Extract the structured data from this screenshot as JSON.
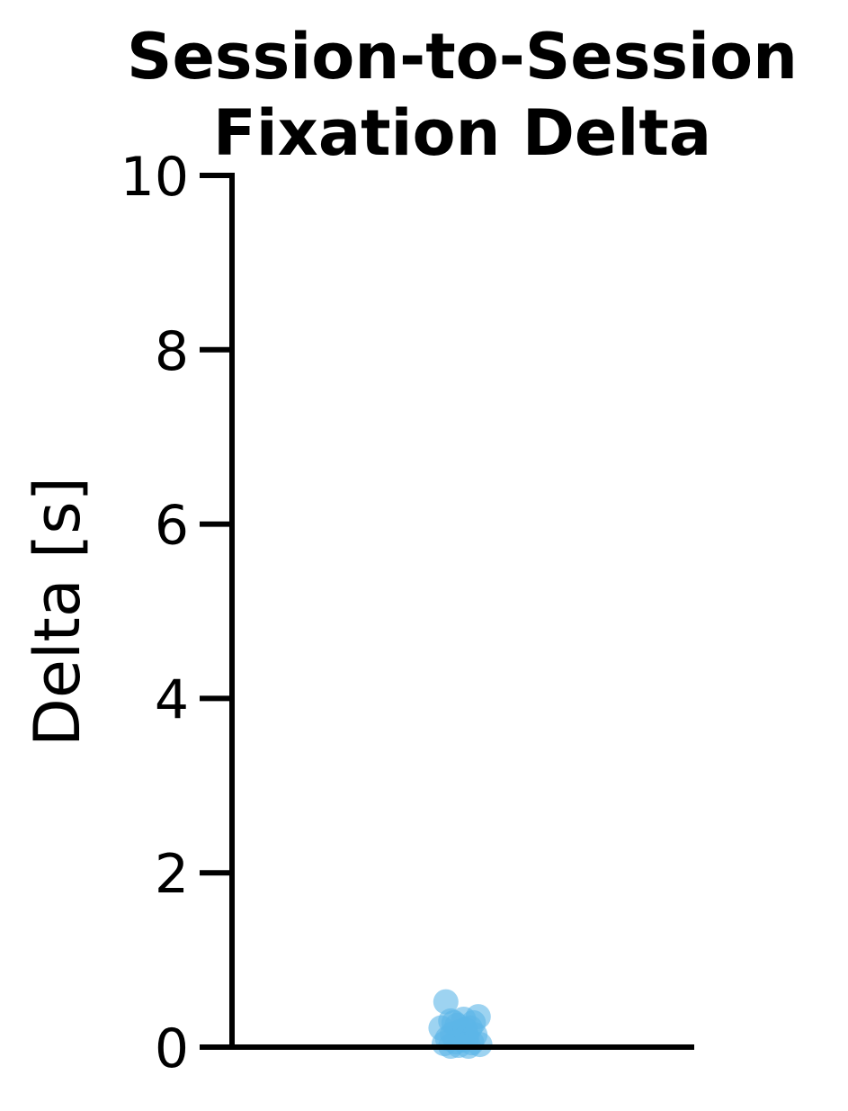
{
  "chart_data": {
    "type": "scatter",
    "title_lines": [
      "Session-to-Session",
      "Fixation Delta"
    ],
    "xlabel": "",
    "ylabel": "Delta [s]",
    "ylim": [
      0,
      10
    ],
    "yticks": [
      "0",
      "2",
      "4",
      "6",
      "8",
      "10"
    ],
    "xticks": [],
    "grid": false,
    "legend": "none",
    "point_color": "#5bb5e8",
    "points": [
      {
        "x": -0.09,
        "y": 0.52
      },
      {
        "x": 0.11,
        "y": 0.35
      },
      {
        "x": -0.06,
        "y": 0.3
      },
      {
        "x": 0.02,
        "y": 0.32
      },
      {
        "x": -0.12,
        "y": 0.22
      },
      {
        "x": -0.02,
        "y": 0.25
      },
      {
        "x": 0.06,
        "y": 0.22
      },
      {
        "x": 0.0,
        "y": 0.18
      },
      {
        "x": -0.05,
        "y": 0.15
      },
      {
        "x": 0.04,
        "y": 0.12
      },
      {
        "x": 0.09,
        "y": 0.14
      },
      {
        "x": -0.08,
        "y": 0.1
      },
      {
        "x": 0.01,
        "y": 0.08
      },
      {
        "x": -0.03,
        "y": 0.06
      },
      {
        "x": 0.07,
        "y": 0.05
      },
      {
        "x": -0.1,
        "y": 0.04
      },
      {
        "x": 0.12,
        "y": 0.03
      },
      {
        "x": -0.01,
        "y": 0.02
      },
      {
        "x": 0.05,
        "y": 0.01
      },
      {
        "x": -0.06,
        "y": 0.01
      },
      {
        "x": 0.03,
        "y": 0.2
      },
      {
        "x": -0.04,
        "y": 0.28
      },
      {
        "x": 0.08,
        "y": 0.28
      }
    ]
  }
}
